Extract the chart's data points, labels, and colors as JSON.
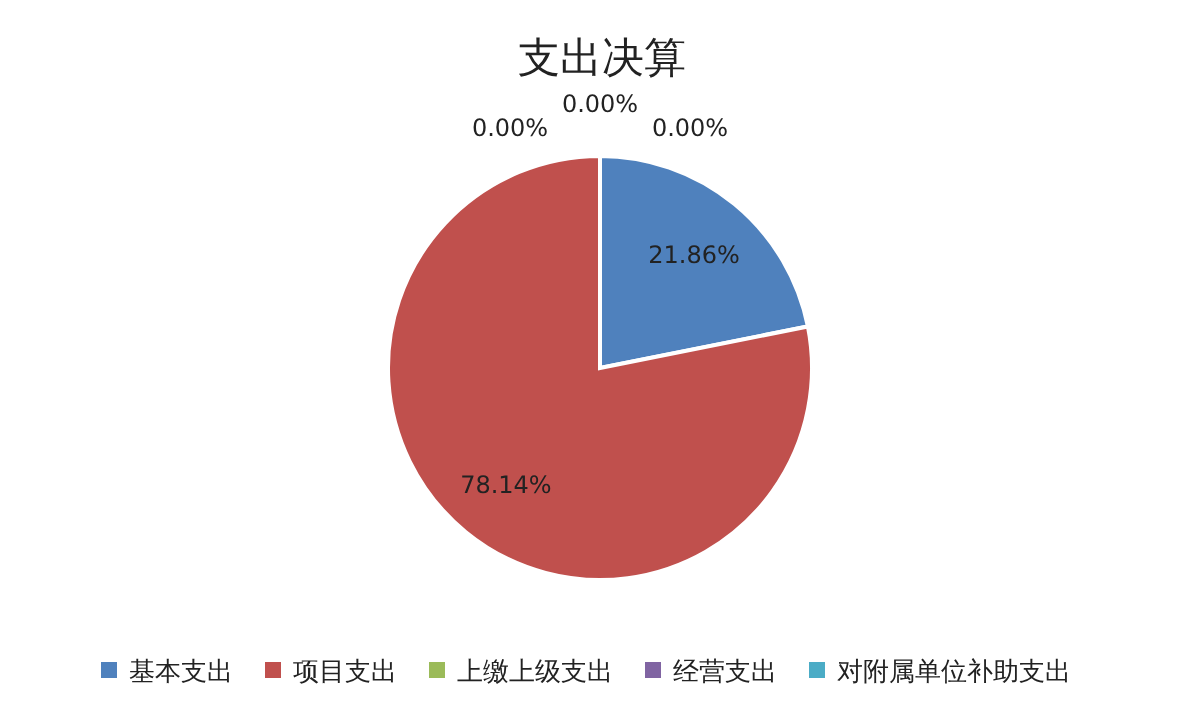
{
  "chart_data": {
    "type": "pie",
    "title": "支出决算",
    "categories": [
      "基本支出",
      "项目支出",
      "上缴上级支出",
      "经营支出",
      "对附属单位补助支出"
    ],
    "values": [
      21.86,
      78.14,
      0,
      0,
      0
    ],
    "value_labels": [
      "21.86%",
      "78.14%",
      "0.00%",
      "0.00%",
      "0.00%"
    ],
    "colors": [
      "#4f81bd",
      "#c0504d",
      "#9bbb59",
      "#8064a2",
      "#4bacc6"
    ],
    "legend": "bottom"
  }
}
